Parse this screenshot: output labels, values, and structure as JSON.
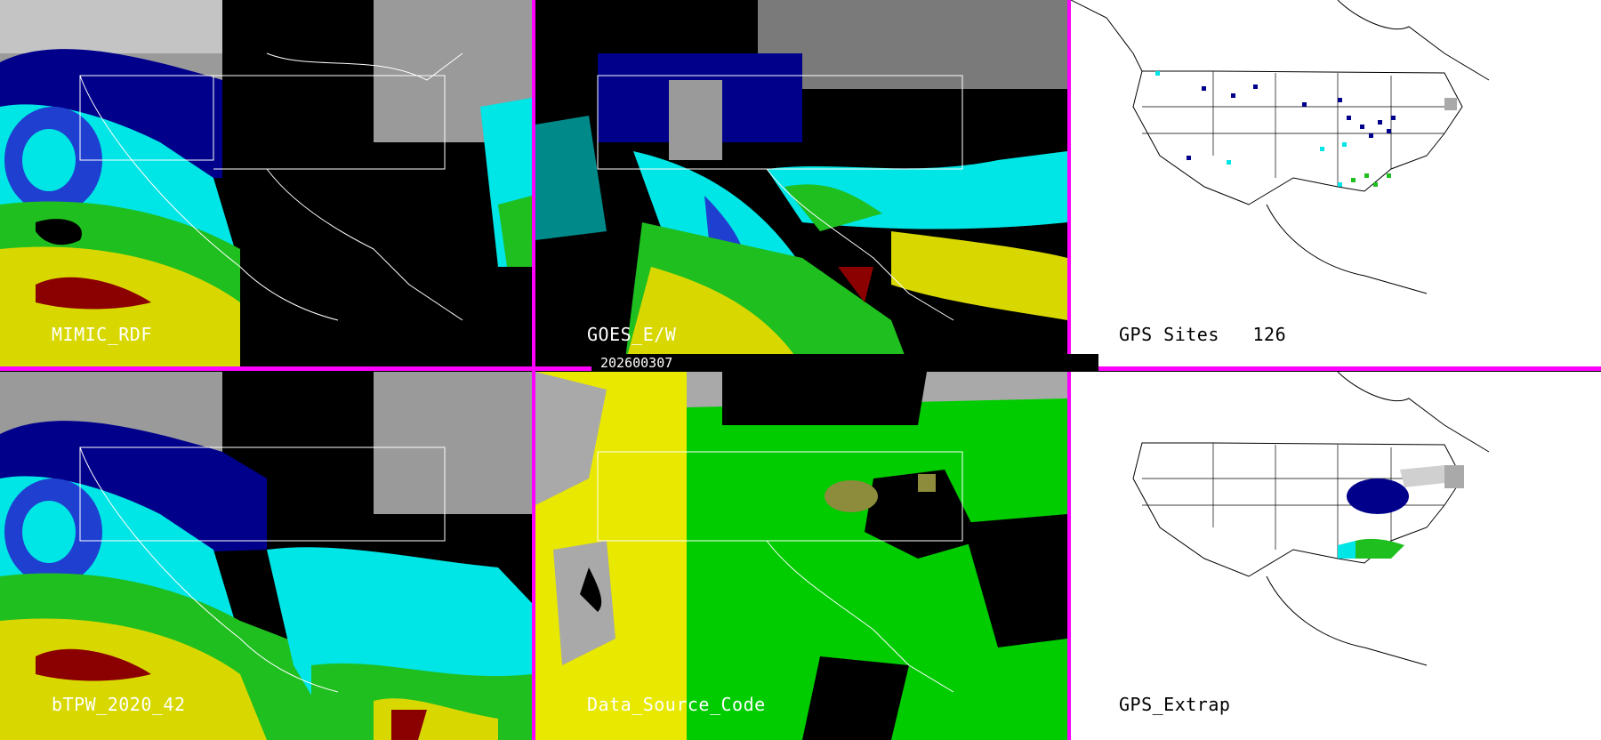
{
  "panels": [
    {
      "label": "MIMIC_RDF"
    },
    {
      "label": "GOES_E/W"
    },
    {
      "label": "GPS Sites   126"
    },
    {
      "label": "bTPW_2020_42"
    },
    {
      "label": "Data_Source_Code"
    },
    {
      "label": "GPS_Extrap"
    }
  ],
  "date_label": "202600307",
  "colors": {
    "separator": "#ff00ff",
    "dry": "#000000",
    "mid_dark": "#00008b",
    "mid_blue": "#1f3fd0",
    "cyan": "#00e5e5",
    "green": "#1fbf1f",
    "yellow": "#d8d800",
    "red": "#8b0000",
    "gray": "#a9a9a9",
    "source_yellow": "#e8e800",
    "source_green": "#00cc00"
  }
}
